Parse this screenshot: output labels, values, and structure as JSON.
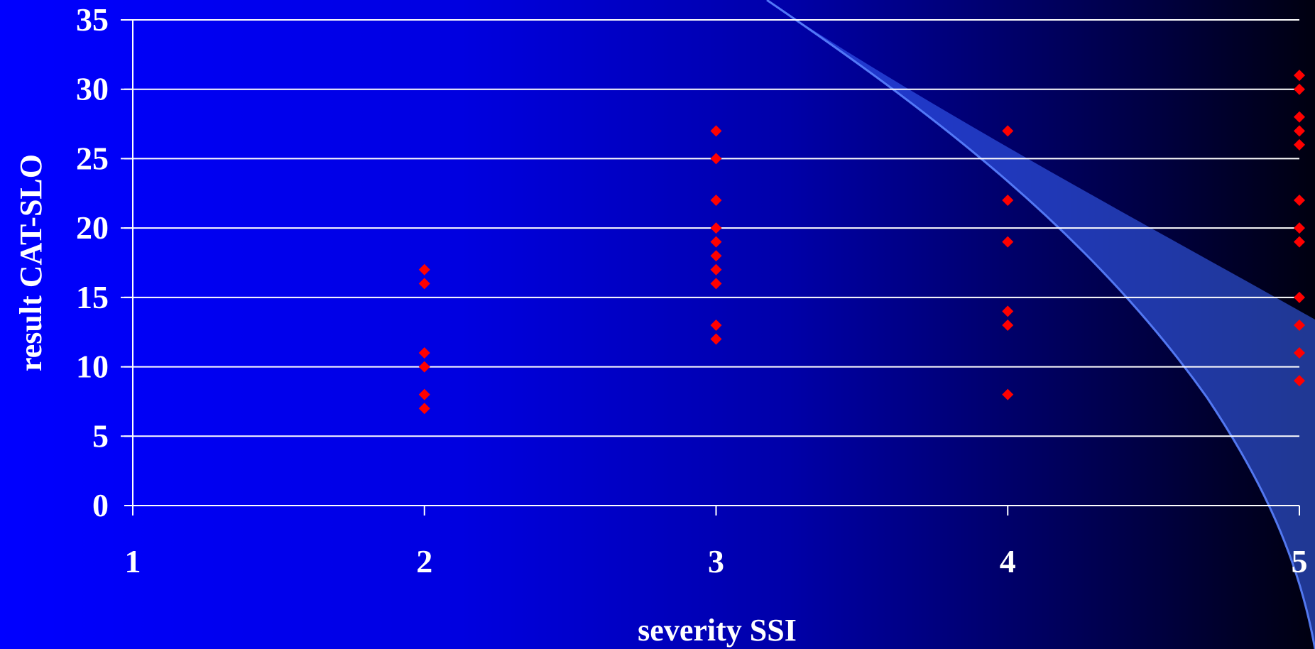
{
  "chart_data": {
    "type": "scatter",
    "title": "",
    "xlabel": "severity SSI",
    "ylabel": "result CAT-SLO",
    "xlim": [
      1,
      5
    ],
    "ylim": [
      0,
      35
    ],
    "xticks": [
      1,
      2,
      3,
      4,
      5
    ],
    "yticks": [
      0,
      5,
      10,
      15,
      20,
      25,
      30,
      35
    ],
    "grid": "horizontal",
    "legend": "none",
    "marker": "diamond",
    "series": [
      {
        "points": [
          [
            2,
            17
          ],
          [
            2,
            16
          ],
          [
            2,
            11
          ],
          [
            2,
            10
          ],
          [
            2,
            8
          ],
          [
            2,
            7
          ],
          [
            3,
            27
          ],
          [
            3,
            25
          ],
          [
            3,
            22
          ],
          [
            3,
            20
          ],
          [
            3,
            19
          ],
          [
            3,
            18
          ],
          [
            3,
            17
          ],
          [
            3,
            16
          ],
          [
            3,
            13
          ],
          [
            3,
            12
          ],
          [
            4,
            27
          ],
          [
            4,
            22
          ],
          [
            4,
            19
          ],
          [
            4,
            14
          ],
          [
            4,
            13
          ],
          [
            4,
            8
          ],
          [
            5,
            31
          ],
          [
            5,
            30
          ],
          [
            5,
            28
          ],
          [
            5,
            27
          ],
          [
            5,
            26
          ],
          [
            5,
            22
          ],
          [
            5,
            20
          ],
          [
            5,
            19
          ],
          [
            5,
            15
          ],
          [
            5,
            13
          ],
          [
            5,
            11
          ],
          [
            5,
            9
          ]
        ]
      }
    ]
  },
  "colors": {
    "marker": "#ff0000",
    "grid": "#ffffff",
    "text": "#ffffff",
    "swoosh": "#3a66ff"
  }
}
